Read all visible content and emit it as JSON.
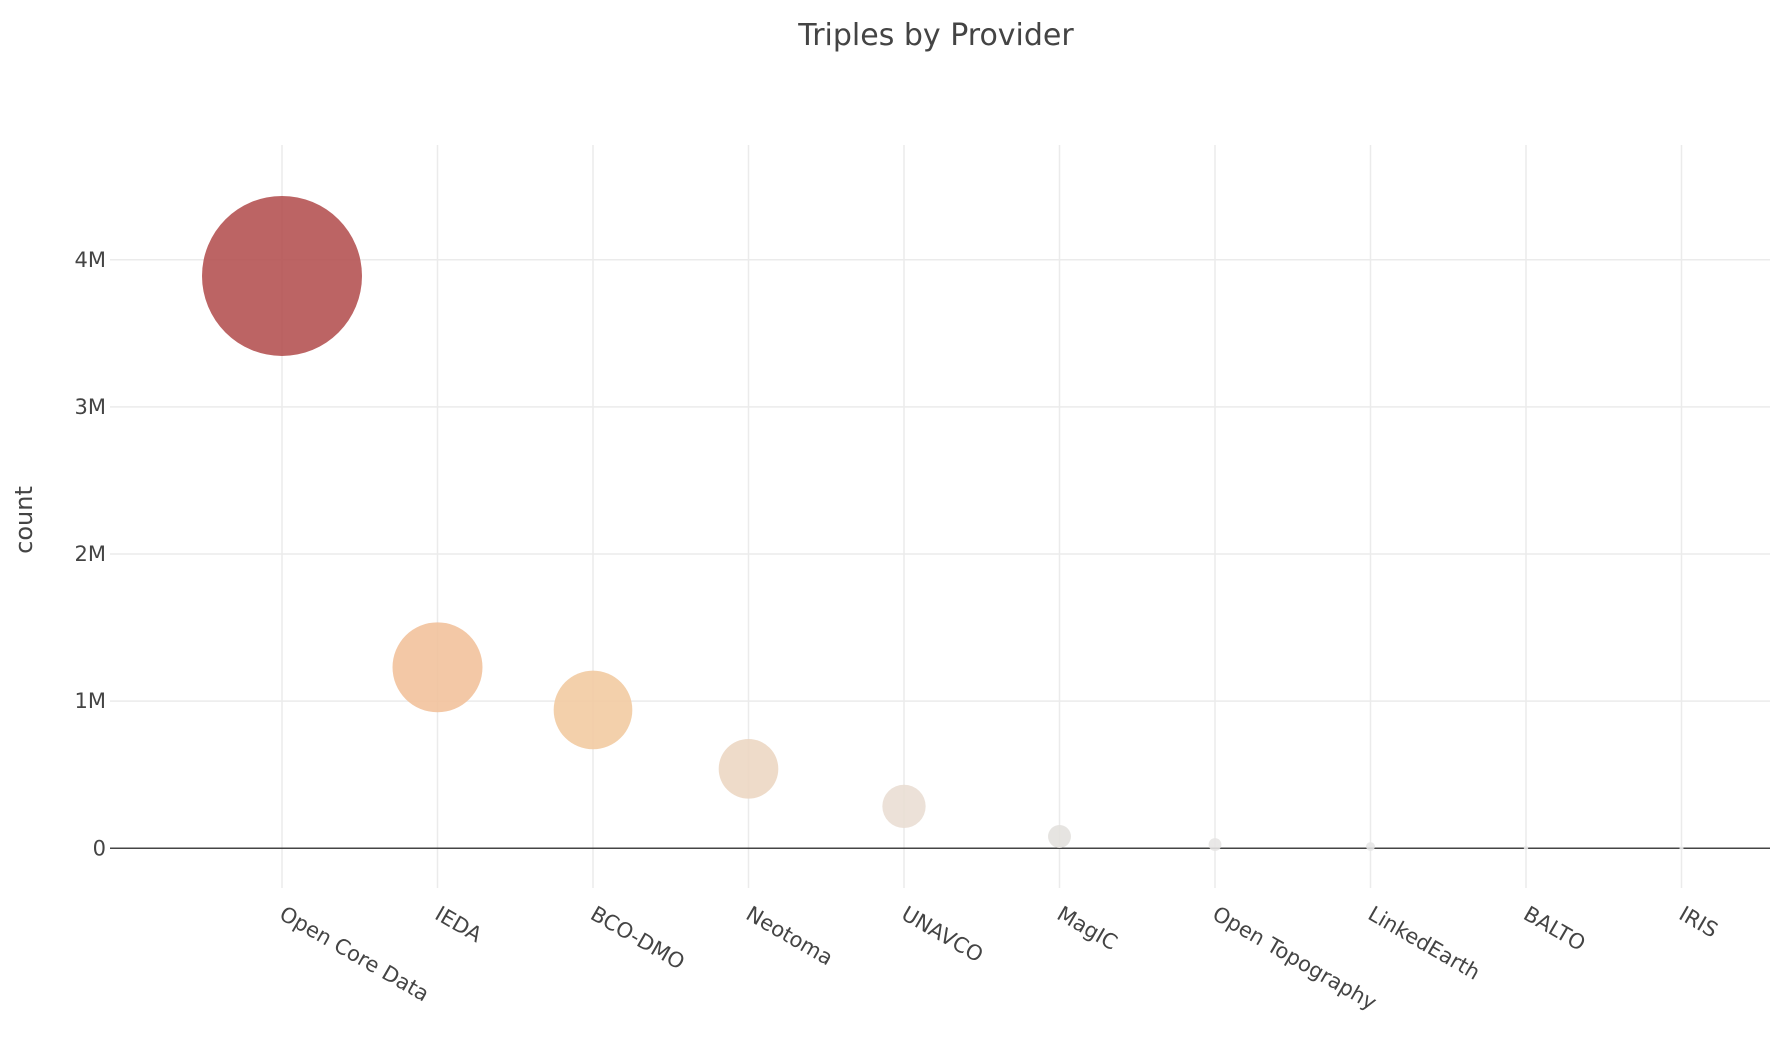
{
  "chart_data": {
    "type": "scatter",
    "title": "Triples by Provider",
    "xlabel": "",
    "ylabel": "count",
    "categories": [
      "Open Core Data",
      "IEDA",
      "BCO-DMO",
      "Neotoma",
      "UNAVCO",
      "MagIC",
      "Open Topography",
      "LinkedEarth",
      "BALTO",
      "IRIS"
    ],
    "values": [
      3890000,
      1230000,
      940000,
      540000,
      285000,
      80000,
      25000,
      12000,
      3000,
      1000
    ],
    "marker_size_encodes": "count",
    "marker_colors": [
      "#b34f4f",
      "#f1c09a",
      "#f1ca9f",
      "#ecd6c1",
      "#e9ddd3",
      "#e3e0dd",
      "#e6e5e4",
      "#e6e6e6",
      "#e9e9e9",
      "#eeeeee"
    ],
    "ylim": [
      -270000,
      4780000
    ],
    "y_ticks": [
      0,
      1000000,
      2000000,
      3000000,
      4000000
    ],
    "y_tick_labels": [
      "0",
      "1M",
      "2M",
      "3M",
      "4M"
    ],
    "grid": true,
    "legend": "none"
  }
}
